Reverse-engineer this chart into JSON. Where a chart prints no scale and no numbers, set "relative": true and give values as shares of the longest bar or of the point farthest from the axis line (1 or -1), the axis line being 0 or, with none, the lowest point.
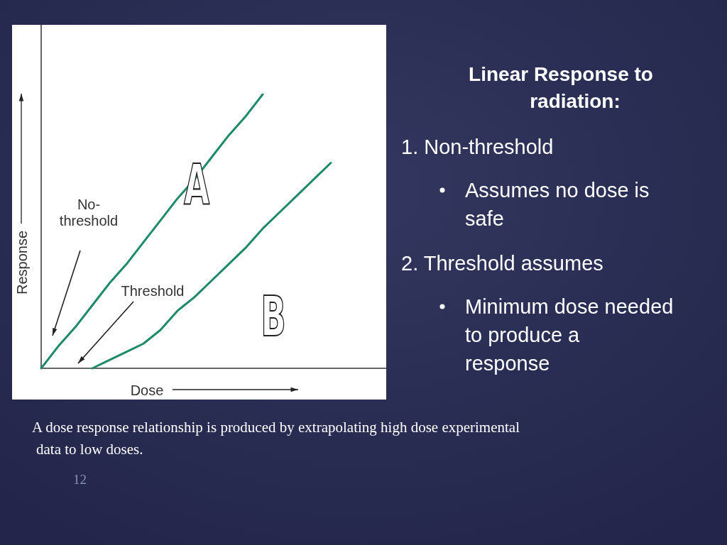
{
  "chart_data": {
    "type": "line",
    "relative": true,
    "xlabel": "Dose",
    "ylabel": "Response",
    "legend": false,
    "marker": "none",
    "line_style": "solid",
    "categories": [
      null,
      null,
      null,
      null,
      null,
      null,
      null,
      null,
      null,
      null,
      null,
      null,
      null,
      null,
      null,
      null,
      null,
      null,
      null,
      null,
      null
    ],
    "series": [
      {
        "name": "No-threshold",
        "color": "#1f8a6a",
        "values": [
          0,
          0.08,
          0.15,
          0.23,
          0.31,
          0.38,
          0.46,
          0.54,
          0.62,
          0.69,
          0.77,
          0.85,
          0.92,
          1,
          null,
          null,
          null,
          null,
          null,
          null,
          null
        ]
      },
      {
        "name": "Threshold",
        "color": "#1f8a6a",
        "values": [
          null,
          null,
          null,
          0,
          0.03,
          0.06,
          0.09,
          0.14,
          0.21,
          0.26,
          0.32,
          0.38,
          0.44,
          0.51,
          0.57,
          0.63,
          0.69,
          0.75,
          null,
          null,
          null
        ]
      }
    ],
    "annotations": [
      "A",
      "B",
      "Linear Response to radiation:",
      "1. Non-threshold",
      "Assumes no dose is safe",
      "2. Threshold assumes",
      "Minimum dose needed to produce a response",
      "A dose response relationship is produced by extrapolating high dose experimental data to low doses.",
      "12"
    ]
  }
}
